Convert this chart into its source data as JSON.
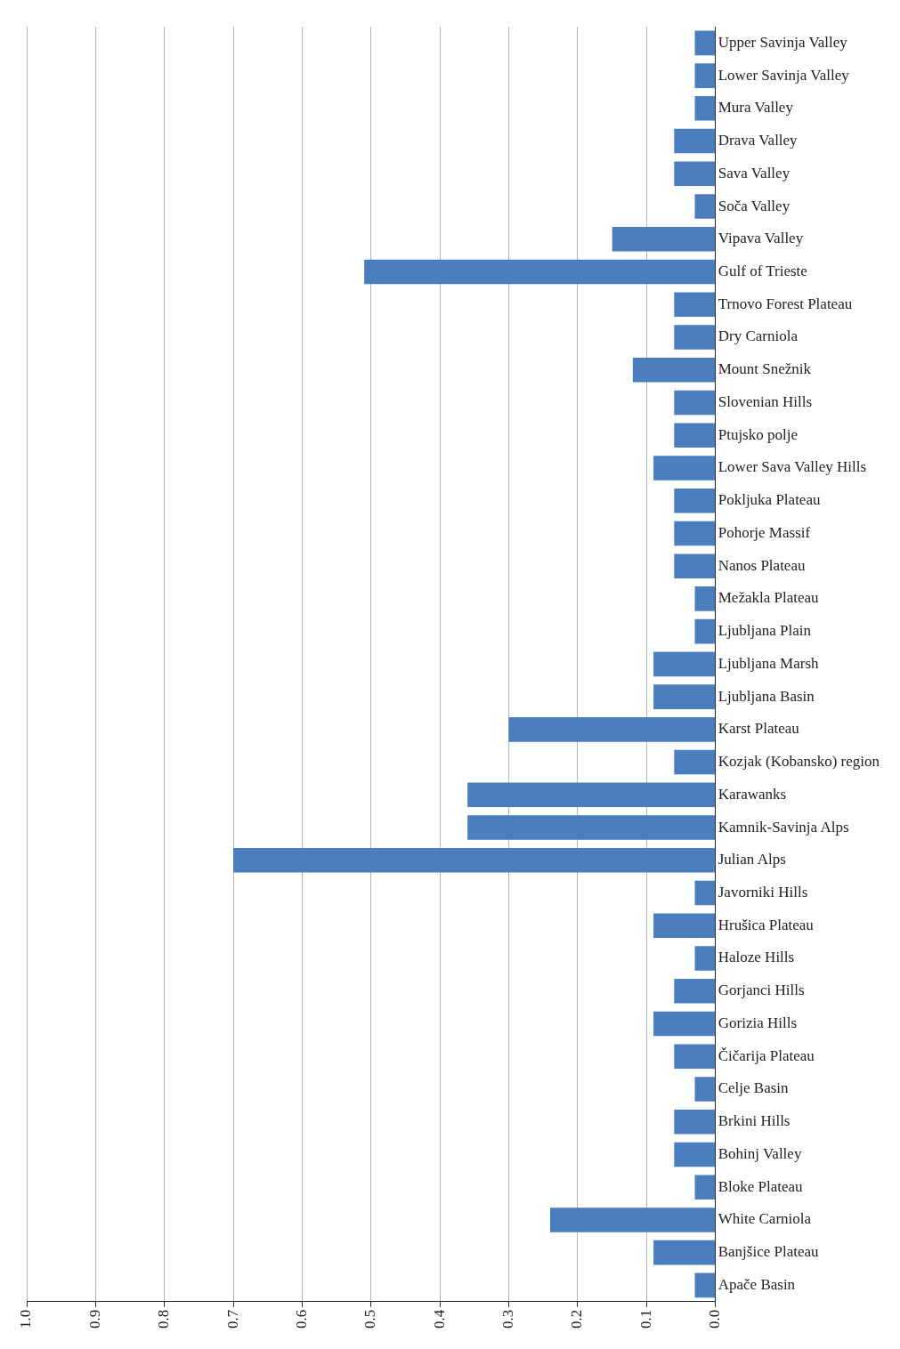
{
  "chart_data": {
    "type": "bar",
    "orientation": "horizontal",
    "categories": [
      "Upper Savinja Valley",
      "Lower Savinja Valley",
      "Mura Valley",
      "Drava Valley",
      "Sava Valley",
      "Soča Valley",
      "Vipava Valley",
      "Gulf of Trieste",
      "Trnovo Forest Plateau",
      "Dry Carniola",
      "Mount Snežnik",
      "Slovenian Hills",
      "Ptujsko polje",
      "Lower Sava Valley Hills",
      "Pokljuka Plateau",
      "Pohorje Massif",
      "Nanos Plateau",
      "Mežakla Plateau",
      "Ljubljana Plain",
      "Ljubljana Marsh",
      "Ljubljana Basin",
      "Karst Plateau",
      "Kozjak (Kobansko) region",
      "Karawanks",
      "Kamnik-Savinja Alps",
      "Julian Alps",
      "Javorniki Hills",
      "Hrušica Plateau",
      "Haloze Hills",
      "Gorjanci Hills",
      "Gorizia Hills",
      "Čičarija Plateau",
      "Celje Basin",
      "Brkini Hills",
      "Bohinj Valley",
      "Bloke Plateau",
      "White Carniola",
      "Banjšice Plateau",
      "Apače Basin"
    ],
    "values": [
      0.03,
      0.03,
      0.03,
      0.06,
      0.06,
      0.03,
      0.15,
      0.51,
      0.06,
      0.06,
      0.12,
      0.06,
      0.06,
      0.09,
      0.06,
      0.06,
      0.06,
      0.03,
      0.03,
      0.09,
      0.09,
      0.3,
      0.06,
      0.36,
      0.36,
      0.7,
      0.03,
      0.09,
      0.03,
      0.06,
      0.09,
      0.06,
      0.03,
      0.06,
      0.06,
      0.03,
      0.24,
      0.09,
      0.03
    ],
    "color": "#4a7ebf",
    "xlim": [
      1.0,
      0.0
    ],
    "xticks": [
      {
        "value": 0,
        "label": "0.0"
      },
      0.1,
      0.2,
      0.3,
      0.4,
      0.5,
      0.6,
      0.7,
      0.8,
      0.9,
      {
        "value": 1,
        "label": "1.0"
      }
    ],
    "grid": "x"
  }
}
